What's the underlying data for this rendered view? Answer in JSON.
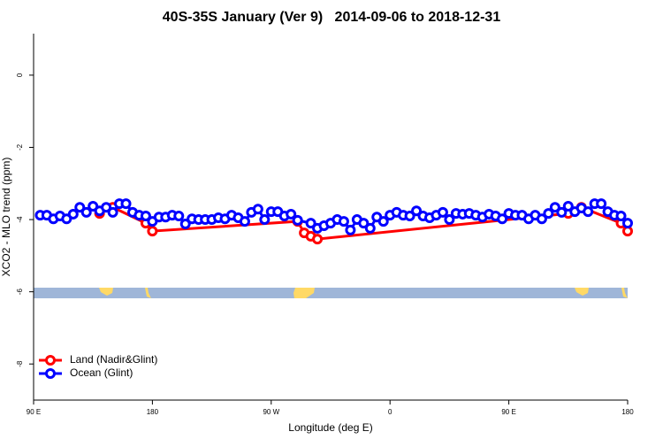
{
  "chart_data": {
    "type": "line",
    "title": "40S-35S January (Ver 9)   2014-09-06 to 2018-12-31",
    "xlabel": "Longitude (deg E)",
    "ylabel": "XCO2 - MLO trend (ppm)",
    "xlim": [
      90,
      540
    ],
    "ylim": [
      -9,
      1.15
    ],
    "xticks": [
      {
        "value": 90,
        "label": "90 E"
      },
      180,
      {
        "value": 270,
        "label": "90 W"
      },
      {
        "value": 360,
        "label": "0"
      },
      {
        "value": 450,
        "label": "90 E"
      },
      {
        "value": 540,
        "label": "180"
      }
    ],
    "yticks": [
      0,
      -2,
      -4,
      -6,
      -8
    ],
    "legend": "bottom-left",
    "series": [
      {
        "name": "Land (Nadir&Glint)",
        "color": "#ff0000",
        "x": [
          140,
          150,
          175,
          180,
          290,
          295,
          300,
          305,
          495,
          505,
          535,
          540
        ],
        "values": [
          -3.83,
          -3.66,
          -4.1,
          -4.32,
          -4.05,
          -4.37,
          -4.46,
          -4.54,
          -3.83,
          -3.66,
          -4.1,
          -4.32
        ]
      },
      {
        "name": "Ocean (Glint)",
        "color": "#0000ff",
        "x": [
          95,
          100,
          105,
          110,
          115,
          120,
          125,
          130,
          135,
          140,
          145,
          150,
          155,
          160,
          165,
          170,
          175,
          180,
          185,
          190,
          195,
          200,
          205,
          210,
          215,
          220,
          225,
          230,
          235,
          240,
          245,
          250,
          255,
          260,
          265,
          270,
          275,
          280,
          285,
          290,
          300,
          305,
          310,
          315,
          320,
          325,
          330,
          335,
          340,
          345,
          350,
          355,
          360,
          365,
          370,
          375,
          380,
          385,
          390,
          395,
          400,
          405,
          410,
          415,
          420,
          425,
          430,
          435,
          440,
          445,
          450,
          455,
          460,
          465,
          470,
          475,
          480,
          485,
          490,
          495,
          500,
          505,
          510,
          515,
          520,
          525,
          530,
          535,
          540
        ],
        "values": [
          -3.88,
          -3.88,
          -3.98,
          -3.9,
          -3.98,
          -3.85,
          -3.66,
          -3.8,
          -3.63,
          -3.76,
          -3.66,
          -3.8,
          -3.56,
          -3.56,
          -3.8,
          -3.88,
          -3.9,
          -4.05,
          -3.93,
          -3.93,
          -3.88,
          -3.9,
          -4.12,
          -3.98,
          -4.0,
          -4.0,
          -4.0,
          -3.95,
          -3.98,
          -3.88,
          -3.95,
          -4.05,
          -3.8,
          -3.71,
          -4.0,
          -3.78,
          -3.78,
          -3.9,
          -3.85,
          -4.02,
          -4.1,
          -4.24,
          -4.17,
          -4.1,
          -4.0,
          -4.05,
          -4.29,
          -4.0,
          -4.1,
          -4.24,
          -3.93,
          -4.05,
          -3.88,
          -3.8,
          -3.88,
          -3.9,
          -3.76,
          -3.9,
          -3.95,
          -3.88,
          -3.8,
          -4.0,
          -3.83,
          -3.85,
          -3.83,
          -3.88,
          -3.93,
          -3.85,
          -3.9,
          -3.98,
          -3.83,
          -3.88,
          -3.88,
          -3.98,
          -3.88,
          -3.98,
          -3.83,
          -3.66,
          -3.8,
          -3.63,
          -3.78,
          -3.68,
          -3.78,
          -3.56,
          -3.56,
          -3.78,
          -3.88,
          -3.9,
          -4.1
        ]
      }
    ]
  }
}
